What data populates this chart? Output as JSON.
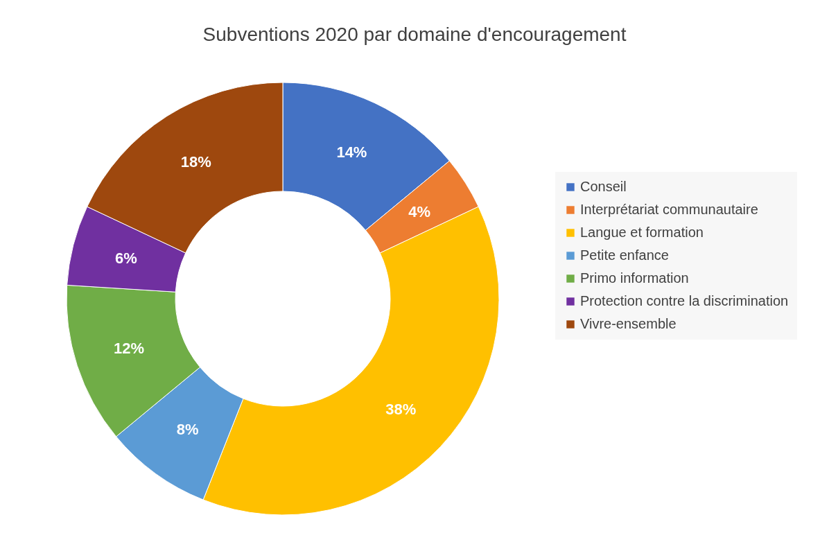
{
  "chart_data": {
    "type": "donut",
    "title": "Subventions 2020 par domaine d'encouragement",
    "categories": [
      "Conseil",
      "Interprétariat communautaire",
      "Langue et formation",
      "Petite enfance",
      "Primo information",
      "Protection contre la discrimination",
      "Vivre-ensemble"
    ],
    "values": [
      14,
      4,
      38,
      8,
      12,
      6,
      18
    ],
    "colors": [
      "#4472c4",
      "#ed7d31",
      "#ffc000",
      "#5b9bd5",
      "#70ad47",
      "#7030a0",
      "#9e480e"
    ],
    "value_labels": [
      "14%",
      "4%",
      "38%",
      "8%",
      "12%",
      "6%",
      "18%"
    ],
    "legend": "right"
  }
}
